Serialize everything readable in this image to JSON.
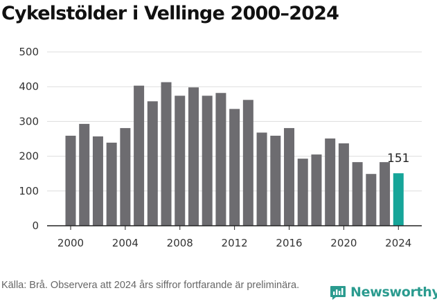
{
  "title": "Cykelstölder i Vellinge 2000–2024",
  "source": "Källa: Brå. Observera att 2024 års siffror fortfarande är preliminära.",
  "brand": {
    "name": "Newsworthy",
    "icon": "newsworthy-logo-icon",
    "color": "#2b9b8f"
  },
  "colors": {
    "bar": "#6d6c70",
    "highlight": "#16a599",
    "grid": "#dddddd",
    "axis": "#222222"
  },
  "chart_data": {
    "type": "bar",
    "categories": [
      "2000",
      "2001",
      "2002",
      "2003",
      "2004",
      "2005",
      "2006",
      "2007",
      "2008",
      "2009",
      "2010",
      "2011",
      "2012",
      "2013",
      "2014",
      "2015",
      "2016",
      "2017",
      "2018",
      "2019",
      "2020",
      "2021",
      "2022",
      "2023",
      "2024"
    ],
    "values": [
      259,
      293,
      257,
      239,
      281,
      403,
      358,
      413,
      374,
      398,
      374,
      382,
      336,
      362,
      268,
      259,
      281,
      193,
      205,
      251,
      237,
      183,
      149,
      183,
      151
    ],
    "highlight_index": 24,
    "highlight_label": "151",
    "x_tick_labels": [
      "2000",
      "2004",
      "2008",
      "2012",
      "2016",
      "2020",
      "2024"
    ],
    "y_ticks": [
      0,
      100,
      200,
      300,
      400,
      500
    ],
    "ylim": [
      0,
      500
    ],
    "xlabel": "",
    "ylabel": "",
    "grid": true,
    "legend": "none"
  }
}
